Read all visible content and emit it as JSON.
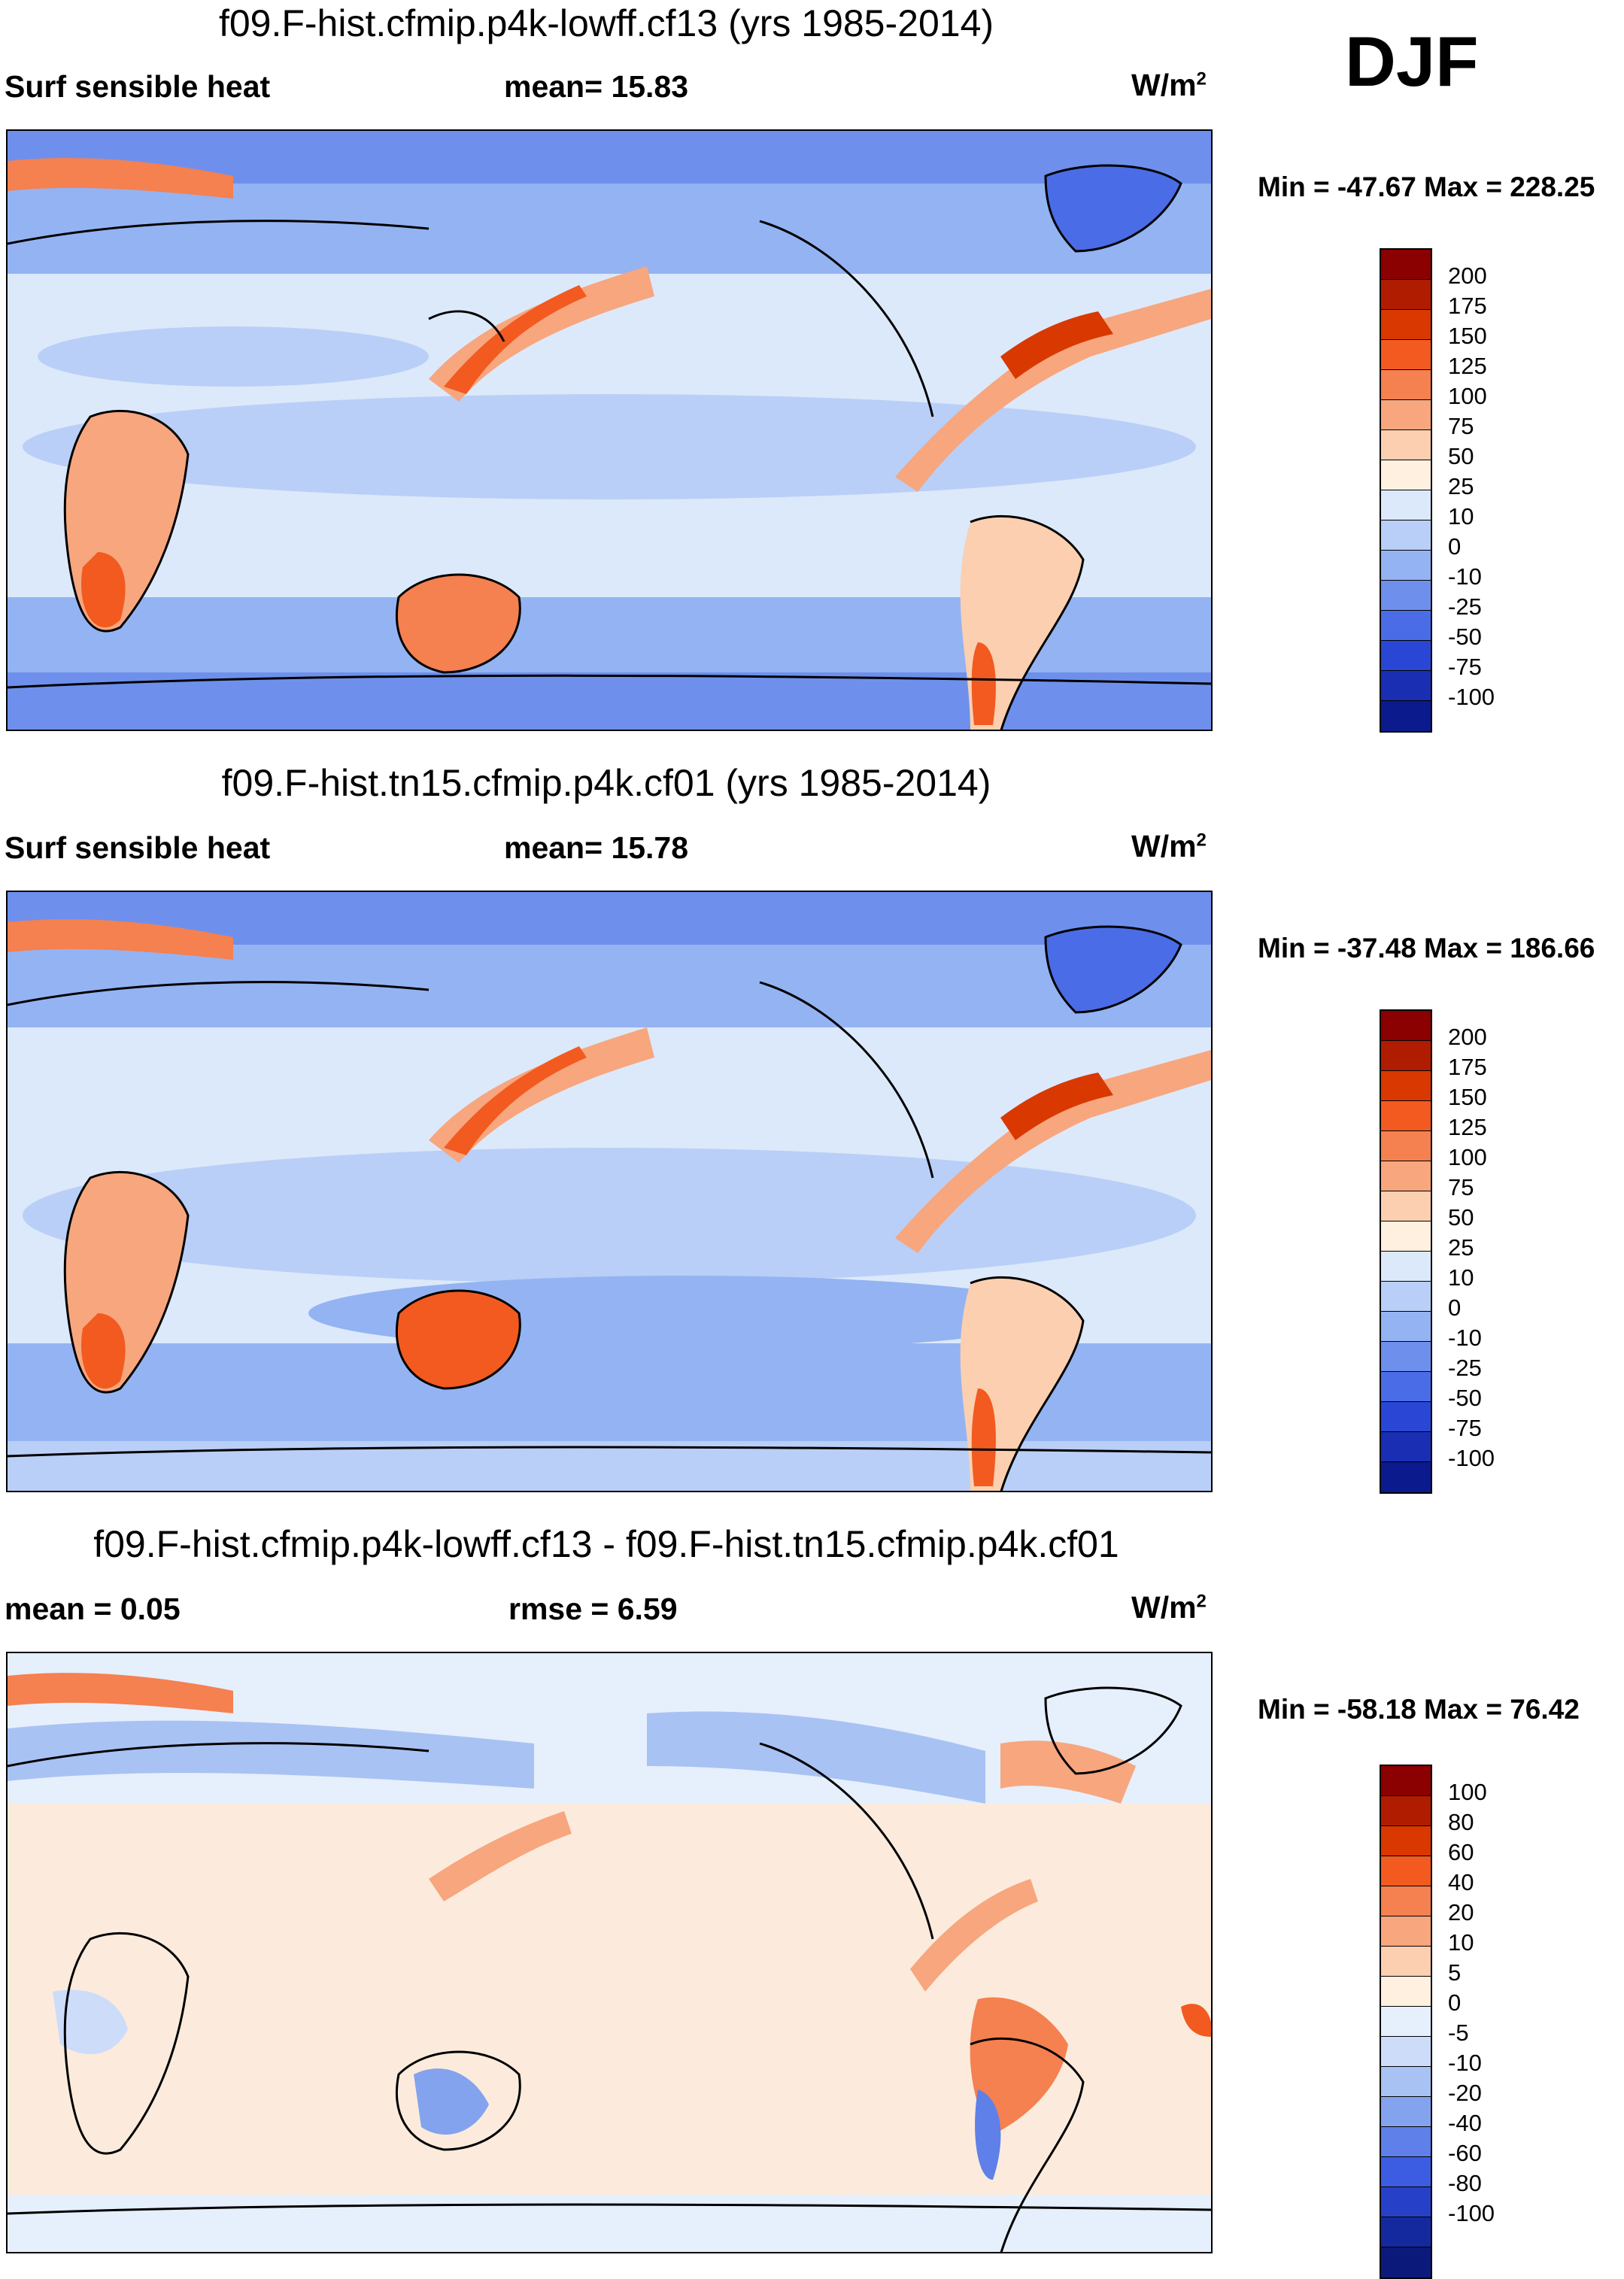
{
  "season": "DJF",
  "panels": [
    {
      "title": "f09.F-hist.cfmip.p4k-lowff.cf13 (yrs 1985-2014)",
      "left_label": "Surf sensible heat",
      "center_label": "mean=  15.83",
      "units_base": "W/m",
      "units_exp": "2",
      "minmax": "Min = -47.67 Max = 228.25",
      "colorbar": {
        "colors": [
          "#8b0000",
          "#b01c00",
          "#d93800",
          "#f25a20",
          "#f58050",
          "#f7a67e",
          "#fbcfb0",
          "#fff0e0",
          "#dce9fb",
          "#b9cff7",
          "#94b3f2",
          "#6e90ec",
          "#4a6ce6",
          "#2a46d4",
          "#1a2eb4",
          "#0b1a8c"
        ],
        "ticks": [
          "200",
          "175",
          "150",
          "125",
          "100",
          "75",
          "50",
          "25",
          "10",
          "0",
          "-10",
          "-25",
          "-50",
          "-75",
          "-100"
        ]
      }
    },
    {
      "title": "f09.F-hist.tn15.cfmip.p4k.cf01 (yrs 1985-2014)",
      "left_label": "Surf sensible heat",
      "center_label": "mean=  15.78",
      "units_base": "W/m",
      "units_exp": "2",
      "minmax": "Min = -37.48 Max = 186.66",
      "colorbar": {
        "colors": [
          "#8b0000",
          "#b01c00",
          "#d93800",
          "#f25a20",
          "#f58050",
          "#f7a67e",
          "#fbcfb0",
          "#fff0e0",
          "#dce9fb",
          "#b9cff7",
          "#94b3f2",
          "#6e90ec",
          "#4a6ce6",
          "#2a46d4",
          "#1a2eb4",
          "#0b1a8c"
        ],
        "ticks": [
          "200",
          "175",
          "150",
          "125",
          "100",
          "75",
          "50",
          "25",
          "10",
          "0",
          "-10",
          "-25",
          "-50",
          "-75",
          "-100"
        ]
      }
    },
    {
      "title": "f09.F-hist.cfmip.p4k-lowff.cf13 - f09.F-hist.tn15.cfmip.p4k.cf01",
      "left_label": "mean =   0.05",
      "center_label": "rmse =   6.59",
      "units_base": "W/m",
      "units_exp": "2",
      "minmax": "Min = -58.18 Max =  76.42",
      "colorbar": {
        "colors": [
          "#8b0000",
          "#b01c00",
          "#d93800",
          "#f25a20",
          "#f58050",
          "#f7a67e",
          "#fbcfb0",
          "#fff0e0",
          "#e6effc",
          "#cddcf9",
          "#a9c2f4",
          "#84a3ee",
          "#5f80e9",
          "#3c5de2",
          "#2740c8",
          "#15299e",
          "#0b1a7a"
        ],
        "ticks": [
          "100",
          "80",
          "60",
          "40",
          "20",
          "10",
          "5",
          "0",
          "-5",
          "-10",
          "-20",
          "-40",
          "-60",
          "-80",
          "-100"
        ]
      }
    }
  ]
}
